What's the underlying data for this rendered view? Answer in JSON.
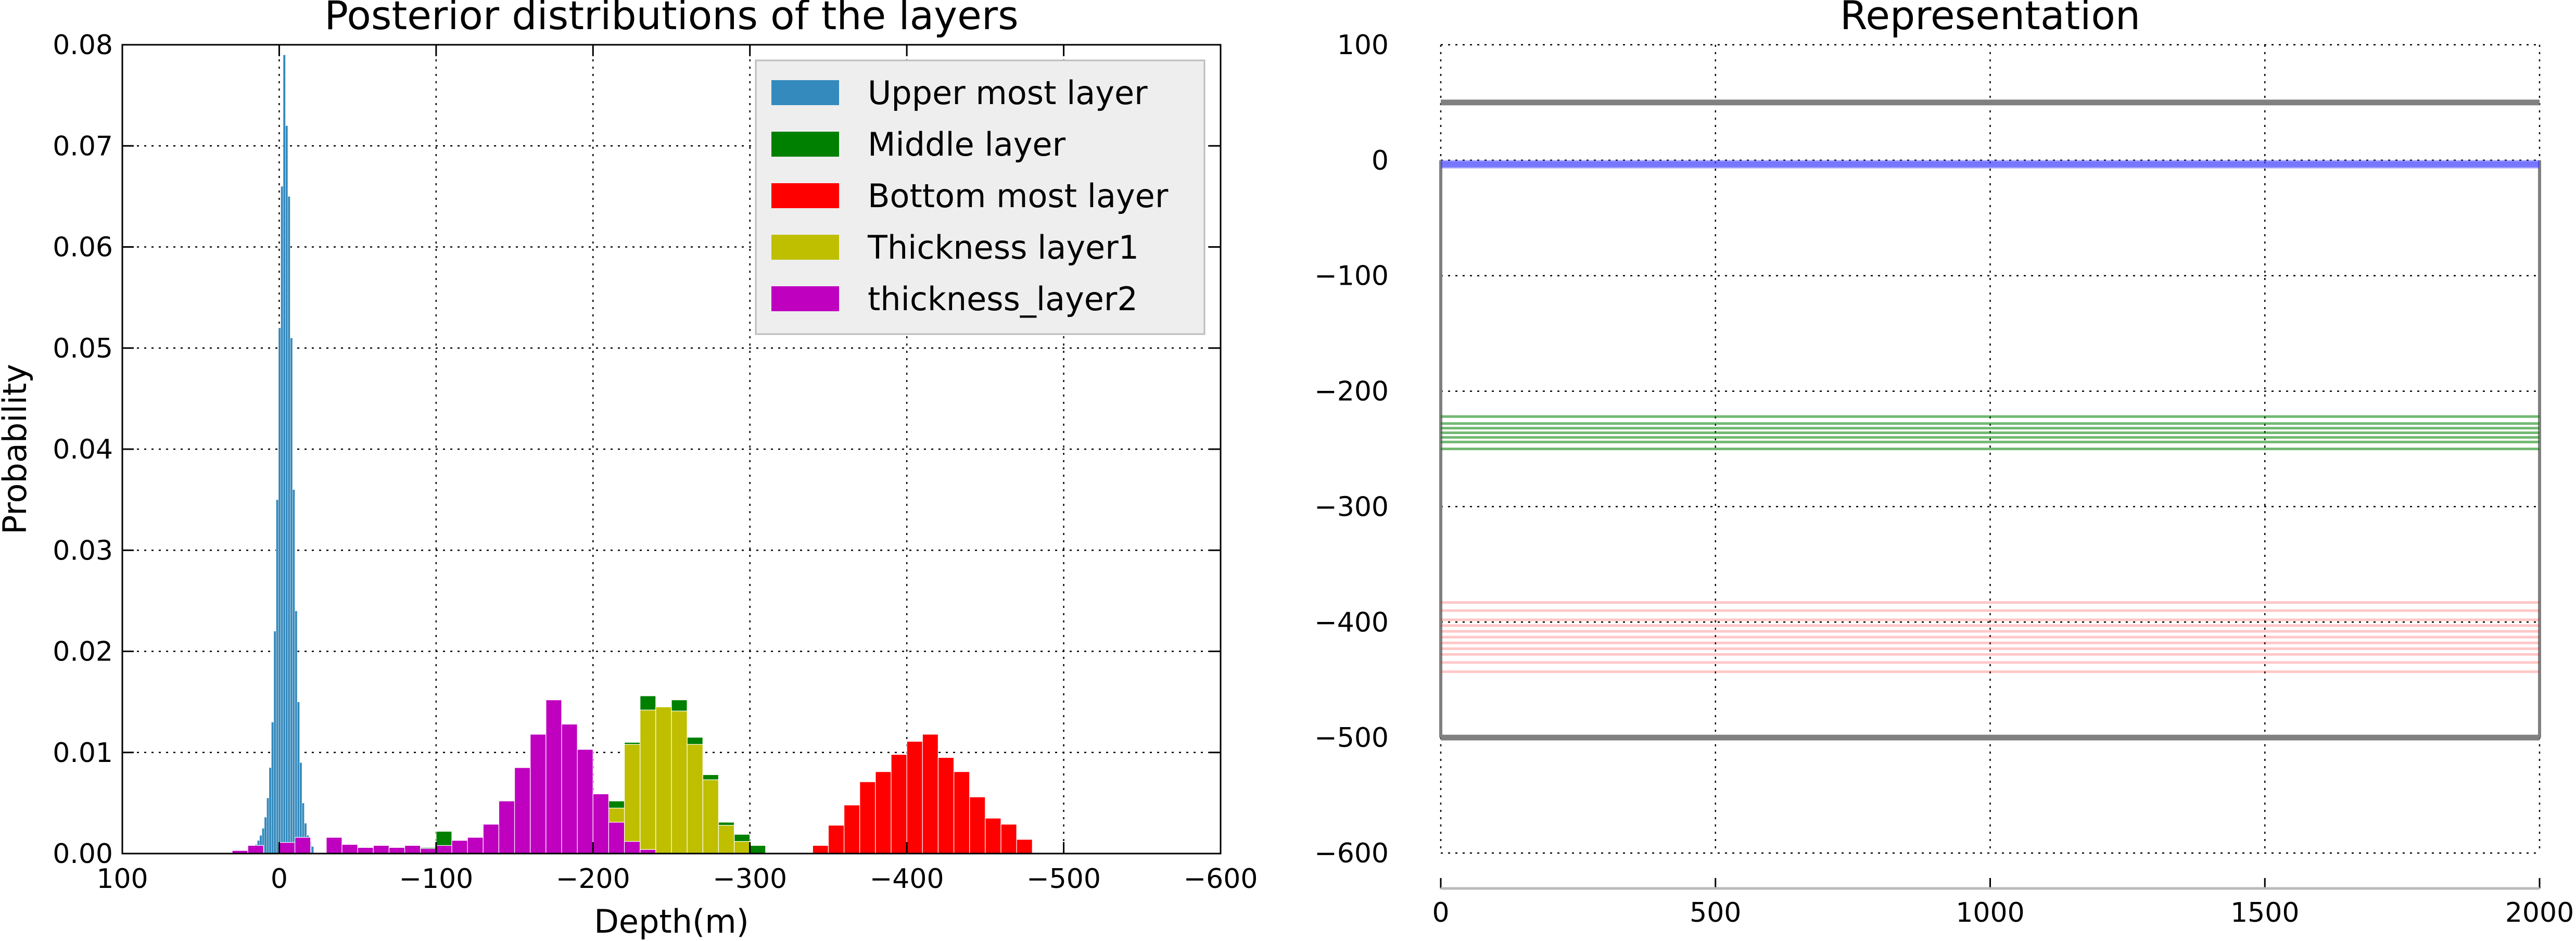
{
  "colors": {
    "upper": "#348ABD",
    "middle": "#008000",
    "bottom": "#FF0000",
    "thick1": "#BFBF00",
    "thick2": "#BF00BF",
    "frame": "#808080",
    "blue_line": "#4444FF",
    "grid": "#000000"
  },
  "chart_data": [
    {
      "type": "histogram",
      "title": "Posterior distributions of the layers",
      "xlabel": "Depth(m)",
      "ylabel": "Probability",
      "xlim": [
        100,
        -600
      ],
      "ylim": [
        0,
        0.08
      ],
      "x_inverted": true,
      "grid": true,
      "legend_position": "upper-right",
      "xticks": [
        100,
        0,
        -100,
        -200,
        -300,
        -400,
        -500,
        -600
      ],
      "xtick_labels": [
        "100",
        "0",
        "−100",
        "−200",
        "−300",
        "−400",
        "−500",
        "−600"
      ],
      "yticks": [
        0,
        0.01,
        0.02,
        0.03,
        0.04,
        0.05,
        0.06,
        0.07,
        0.08
      ],
      "ytick_labels": [
        "0.00",
        "0.01",
        "0.02",
        "0.03",
        "0.04",
        "0.05",
        "0.06",
        "0.07",
        "0.08"
      ],
      "series": [
        {
          "name": "Upper most layer",
          "color_key": "upper",
          "bin_width": 1.5,
          "bins": [
            [
              20,
              0.0003
            ],
            [
              18.5,
              0.0004
            ],
            [
              17,
              0.0006
            ],
            [
              15.5,
              0.0009
            ],
            [
              14,
              0.0013
            ],
            [
              12.5,
              0.0018
            ],
            [
              11,
              0.0025
            ],
            [
              9.5,
              0.0036
            ],
            [
              8,
              0.0055
            ],
            [
              6.5,
              0.0085
            ],
            [
              5,
              0.013
            ],
            [
              3.5,
              0.022
            ],
            [
              2,
              0.035
            ],
            [
              0.5,
              0.052
            ],
            [
              -1,
              0.066
            ],
            [
              -2.5,
              0.079
            ],
            [
              -4,
              0.072
            ],
            [
              -5.5,
              0.065
            ],
            [
              -7,
              0.051
            ],
            [
              -8.5,
              0.036
            ],
            [
              -10,
              0.024
            ],
            [
              -11.5,
              0.015
            ],
            [
              -13,
              0.009
            ],
            [
              -14.5,
              0.005
            ],
            [
              -16,
              0.003
            ],
            [
              -17.5,
              0.0018
            ],
            [
              -19,
              0.0012
            ],
            [
              -20.5,
              0.0007
            ]
          ]
        },
        {
          "name": "Middle layer",
          "color_key": "middle",
          "bin_width": 10,
          "bins": [
            [
              -90,
              0.0006
            ],
            [
              -100,
              0.0022
            ],
            [
              -110,
              0.0009
            ],
            [
              -120,
              0.001
            ],
            [
              -130,
              0.0013
            ],
            [
              -140,
              0.0022
            ],
            [
              -150,
              0.0028
            ],
            [
              -160,
              0.0032
            ],
            [
              -170,
              0.0038
            ],
            [
              -180,
              0.0042
            ],
            [
              -190,
              0.0045
            ],
            [
              -200,
              0.0046
            ],
            [
              -210,
              0.0052
            ],
            [
              -220,
              0.011
            ],
            [
              -230,
              0.0156
            ],
            [
              -240,
              0.0142
            ],
            [
              -250,
              0.0152
            ],
            [
              -260,
              0.0115
            ],
            [
              -270,
              0.0078
            ],
            [
              -280,
              0.0031
            ],
            [
              -290,
              0.0019
            ],
            [
              -300,
              0.0008
            ]
          ]
        },
        {
          "name": "Bottom most layer",
          "color_key": "bottom",
          "bin_width": 10,
          "bins": [
            [
              -340,
              0.0008
            ],
            [
              -350,
              0.0028
            ],
            [
              -360,
              0.0048
            ],
            [
              -370,
              0.0071
            ],
            [
              -380,
              0.0081
            ],
            [
              -390,
              0.0098
            ],
            [
              -400,
              0.0111
            ],
            [
              -410,
              0.0118
            ],
            [
              -420,
              0.0095
            ],
            [
              -430,
              0.0081
            ],
            [
              -440,
              0.0056
            ],
            [
              -450,
              0.0035
            ],
            [
              -460,
              0.0029
            ],
            [
              -470,
              0.0014
            ]
          ]
        },
        {
          "name": "Thickness layer1",
          "color_key": "thick1",
          "bin_width": 10,
          "bins": [
            [
              -200,
              0.0002
            ],
            [
              -210,
              0.0045
            ],
            [
              -220,
              0.0108
            ],
            [
              -230,
              0.0142
            ],
            [
              -240,
              0.0145
            ],
            [
              -250,
              0.0141
            ],
            [
              -260,
              0.0108
            ],
            [
              -270,
              0.0073
            ],
            [
              -280,
              0.0028
            ],
            [
              -290,
              0.0012
            ]
          ]
        },
        {
          "name": "thickness_layer2",
          "color_key": "thick2",
          "bin_width": 10,
          "bins": [
            [
              30,
              0.0003
            ],
            [
              20,
              0.0008
            ],
            [
              0,
              0.0011
            ],
            [
              -10,
              0.0016
            ],
            [
              -30,
              0.0016
            ],
            [
              -40,
              0.0009
            ],
            [
              -50,
              0.0006
            ],
            [
              -60,
              0.0008
            ],
            [
              -70,
              0.0006
            ],
            [
              -80,
              0.0008
            ],
            [
              -90,
              0.0005
            ],
            [
              -100,
              0.0008
            ],
            [
              -110,
              0.0013
            ],
            [
              -120,
              0.0016
            ],
            [
              -130,
              0.0029
            ],
            [
              -140,
              0.0052
            ],
            [
              -150,
              0.0085
            ],
            [
              -160,
              0.0118
            ],
            [
              -170,
              0.0152
            ],
            [
              -180,
              0.0128
            ],
            [
              -190,
              0.0103
            ],
            [
              -200,
              0.0059
            ],
            [
              -210,
              0.0031
            ],
            [
              -220,
              0.0012
            ],
            [
              -230,
              0.0004
            ]
          ]
        }
      ]
    },
    {
      "type": "line",
      "title": "Representation",
      "xlabel": "",
      "ylabel": "",
      "xlim": [
        0,
        2000
      ],
      "ylim": [
        -600,
        100
      ],
      "grid": true,
      "xticks": [
        0,
        500,
        1000,
        1500,
        2000
      ],
      "xtick_labels": [
        "0",
        "500",
        "1000",
        "1500",
        "2000"
      ],
      "yticks": [
        100,
        0,
        -100,
        -200,
        -300,
        -400,
        -500,
        -600
      ],
      "ytick_labels": [
        "100",
        "0",
        "−100",
        "−200",
        "−300",
        "−400",
        "−500",
        "−600"
      ],
      "series": [
        {
          "name": "",
          "kind": "boundary",
          "color_key": "frame",
          "y_values": [
            50,
            -500
          ],
          "x_range": [
            0,
            2000
          ]
        },
        {
          "name": "",
          "kind": "frame-sides",
          "color_key": "frame",
          "x_values": [
            0,
            2000
          ],
          "y_range": [
            -500,
            0
          ]
        },
        {
          "name": "",
          "kind": "layer-samples",
          "color_key": "blue_line",
          "y_values": [
            -1,
            -2,
            -3,
            -4,
            -5,
            -6
          ]
        },
        {
          "name": "",
          "kind": "layer-samples",
          "color_key": "middle",
          "y_values": [
            -222,
            -228,
            -232,
            -236,
            -240,
            -244,
            -250
          ]
        },
        {
          "name": "",
          "kind": "layer-samples",
          "color_key": "bottom",
          "y_values": [
            -383,
            -390,
            -398,
            -403,
            -408,
            -413,
            -418,
            -423,
            -428,
            -435,
            -443
          ]
        }
      ]
    }
  ]
}
